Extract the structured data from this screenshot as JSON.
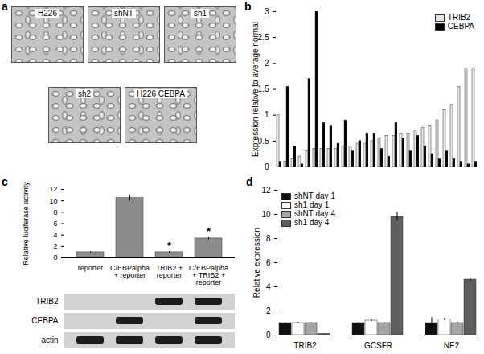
{
  "chart_data": [
    {
      "type": "bar",
      "ylabel": "Expression relative to average normal",
      "categories": [
        null,
        null,
        null,
        null,
        null,
        null,
        null,
        null,
        null,
        null,
        null,
        null,
        null,
        null,
        null,
        null,
        null,
        null,
        null,
        null,
        null,
        null,
        null,
        null,
        null,
        null,
        null,
        null
      ],
      "series": [
        {
          "name": "TRIB2",
          "color": "#e8e8e8",
          "values": [
            1.0,
            0.1,
            0.15,
            0.2,
            0.3,
            0.35,
            0.35,
            0.35,
            0.35,
            0.4,
            0.4,
            0.45,
            0.45,
            0.5,
            0.55,
            0.6,
            0.6,
            0.65,
            0.65,
            0.7,
            0.75,
            0.8,
            0.9,
            1.1,
            1.2,
            1.55,
            1.9,
            1.9
          ]
        },
        {
          "name": "CEBPA",
          "color": "#000000",
          "values": [
            0.1,
            1.55,
            0.4,
            0.05,
            1.7,
            3.0,
            0.85,
            0.8,
            0.45,
            0.9,
            0.3,
            0.5,
            0.65,
            0.65,
            0.35,
            0.2,
            0.85,
            0.55,
            0.3,
            0.6,
            0.4,
            0.25,
            0.15,
            0.3,
            0.15,
            0.1,
            0.05,
            0.1
          ]
        }
      ],
      "ylim": [
        0,
        3
      ],
      "yticks": [
        0,
        0.5,
        1,
        1.5,
        2,
        2.5,
        3
      ],
      "legend": "top-right",
      "tick_labels": "y"
    },
    {
      "type": "bar",
      "ylabel": "Relative luciferase activity",
      "categories": [
        "reporter",
        "C/EBPalpha + reporter",
        "TRIB2 + reporter",
        "C/EBPalpha + TRIB2 + reporter"
      ],
      "values": [
        1.0,
        10.5,
        1.0,
        3.4
      ],
      "error": [
        0.1,
        0.5,
        0.1,
        0.2
      ],
      "color": "#8c8c8c",
      "ylim": [
        0,
        12
      ],
      "yticks": [
        0,
        2,
        4,
        6,
        8,
        10,
        12
      ],
      "annotations": [
        {
          "category": "TRIB2 + reporter",
          "text": "*"
        },
        {
          "category": "C/EBPalpha + TRIB2 + reporter",
          "text": "*"
        }
      ]
    },
    {
      "type": "bar",
      "ylabel": "Relative expression",
      "categories": [
        "TRIB2",
        "GCSFR",
        "NE2"
      ],
      "series": [
        {
          "name": "shNT day 1",
          "color": "#111111",
          "values": [
            1.0,
            1.0,
            1.0
          ],
          "error": [
            0.02,
            0.05,
            0.45
          ]
        },
        {
          "name": "sh1 day 1",
          "color": "#ffffff",
          "values": [
            1.0,
            1.2,
            1.3
          ],
          "error": [
            0.05,
            0.08,
            0.1
          ]
        },
        {
          "name": "shNT day 4",
          "color": "#a6a6a6",
          "values": [
            1.0,
            1.0,
            1.0
          ],
          "error": [
            0.03,
            0.05,
            0.08
          ]
        },
        {
          "name": "sh1 day 4",
          "color": "#5e5e5e",
          "values": [
            0.1,
            9.8,
            4.6
          ],
          "error": [
            0.02,
            0.35,
            0.12
          ]
        }
      ],
      "ylim": [
        0,
        12
      ],
      "yticks": [
        0,
        2,
        4,
        6,
        8,
        10,
        12
      ],
      "legend": "top-left"
    }
  ],
  "figure": {
    "panel_labels": [
      "a",
      "b",
      "c",
      "d"
    ],
    "images": [
      {
        "label": "H226"
      },
      {
        "label": "shNT"
      },
      {
        "label": "sh1"
      },
      {
        "label": "sh2"
      },
      {
        "label": "H226 CEBPA"
      }
    ],
    "blot": {
      "rows": [
        {
          "name": "TRIB2",
          "bands": [
            false,
            false,
            true,
            true
          ]
        },
        {
          "name": "CEBPA",
          "bands": [
            false,
            true,
            false,
            true
          ]
        },
        {
          "name": "actin",
          "bands": [
            true,
            true,
            true,
            true
          ]
        }
      ]
    }
  }
}
